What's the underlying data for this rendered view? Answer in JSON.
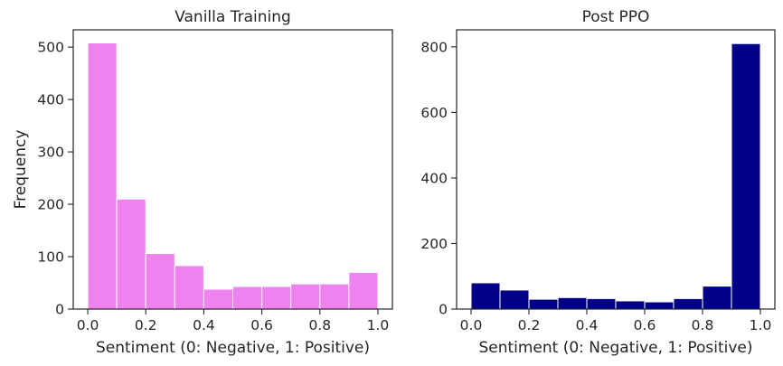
{
  "chart_data": [
    {
      "type": "bar",
      "subtype": "histogram",
      "title": "Vanilla Training",
      "xlabel": "Sentiment (0: Negative, 1: Positive)",
      "ylabel": "Frequency",
      "bin_edges": [
        0.0,
        0.1,
        0.2,
        0.3,
        0.4,
        0.5,
        0.6,
        0.7,
        0.8,
        0.9,
        1.0
      ],
      "values": [
        508,
        210,
        106,
        83,
        38,
        43,
        43,
        48,
        48,
        70
      ],
      "xlim": [
        -0.05,
        1.05
      ],
      "ylim": [
        0,
        533
      ],
      "xticks": [
        0.0,
        0.2,
        0.4,
        0.6,
        0.8,
        1.0
      ],
      "xtick_labels": [
        "0.0",
        "0.2",
        "0.4",
        "0.6",
        "0.8",
        "1.0"
      ],
      "yticks": [
        0,
        100,
        200,
        300,
        400,
        500
      ],
      "ytick_labels": [
        "0",
        "100",
        "200",
        "300",
        "400",
        "500"
      ],
      "color": "#ee82ee",
      "grid": false
    },
    {
      "type": "bar",
      "subtype": "histogram",
      "title": "Post PPO",
      "xlabel": "Sentiment (0: Negative, 1: Positive)",
      "ylabel": "",
      "bin_edges": [
        0.0,
        0.1,
        0.2,
        0.3,
        0.4,
        0.5,
        0.6,
        0.7,
        0.8,
        0.9,
        1.0
      ],
      "values": [
        80,
        58,
        30,
        35,
        32,
        25,
        22,
        32,
        70,
        810
      ],
      "xlim": [
        -0.05,
        1.05
      ],
      "ylim": [
        0,
        852
      ],
      "xticks": [
        0.0,
        0.2,
        0.4,
        0.6,
        0.8,
        1.0
      ],
      "xtick_labels": [
        "0.0",
        "0.2",
        "0.4",
        "0.6",
        "0.8",
        "1.0"
      ],
      "yticks": [
        0,
        200,
        400,
        600,
        800
      ],
      "ytick_labels": [
        "0",
        "200",
        "400",
        "600",
        "800"
      ],
      "color": "#00008b",
      "grid": false
    }
  ]
}
